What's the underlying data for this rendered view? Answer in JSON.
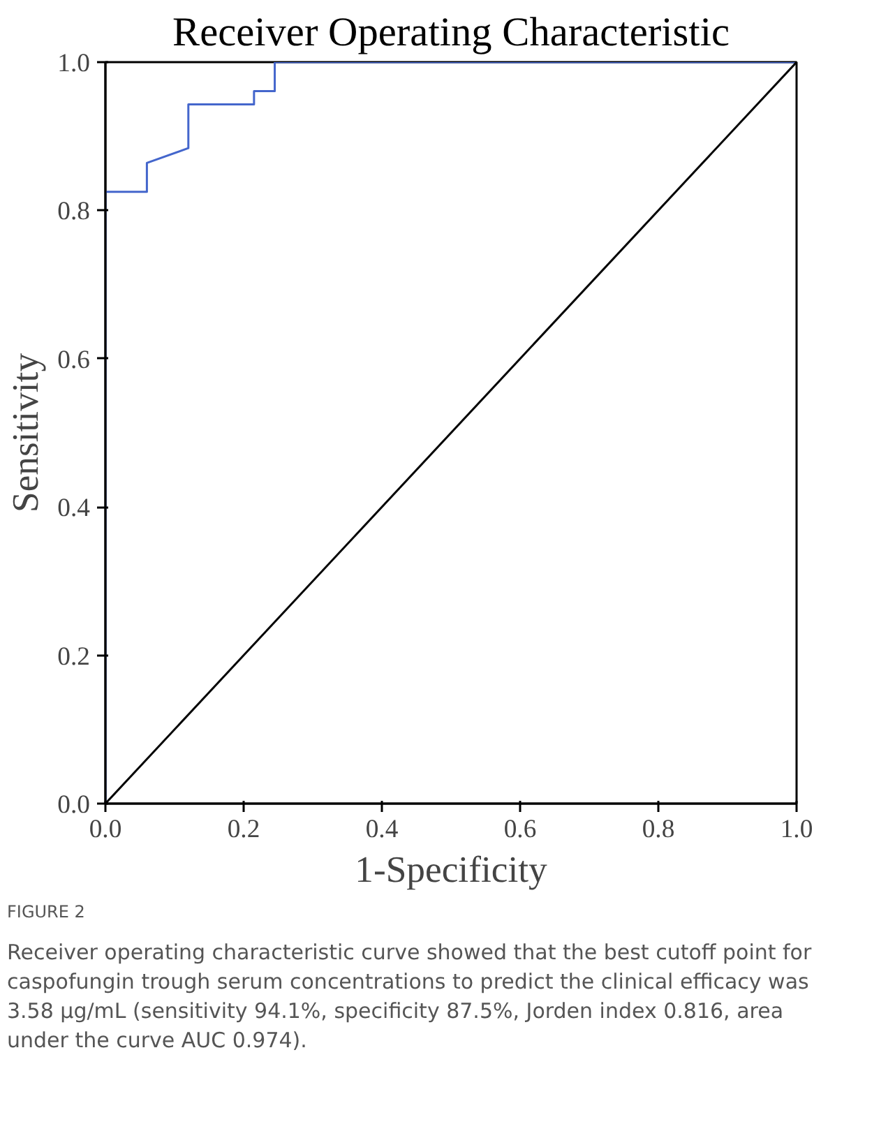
{
  "chart_data": {
    "type": "line",
    "title": "Receiver Operating Characteristic",
    "xlabel": "1-Specificity",
    "ylabel": "Sensitivity",
    "series": [
      {
        "color": "#4466cc",
        "x": [
          0,
          0,
          0.06,
          0.06,
          0.12,
          0.12,
          0.215,
          0.215,
          0.245,
          0.245,
          1
        ],
        "values": [
          0,
          0.825,
          0.825,
          0.864,
          0.884,
          0.943,
          0.943,
          0.961,
          0.961,
          1,
          1
        ]
      },
      {
        "color": "#000000",
        "x": [
          0,
          1
        ],
        "values": [
          0,
          1
        ]
      }
    ],
    "xlim": [
      0,
      1
    ],
    "ylim": [
      0,
      1
    ],
    "xticks": [
      {
        "value": 0,
        "label": "0.0"
      },
      0.2,
      0.4,
      0.6,
      0.8,
      {
        "value": 1,
        "label": "1.0"
      }
    ],
    "yticks": [
      {
        "value": 0,
        "label": "0.0"
      },
      0.2,
      0.4,
      0.6,
      0.8,
      {
        "value": 1,
        "label": "1.0"
      }
    ],
    "grid": false,
    "annotations": [
      "FIGURE 2",
      "Receiver operating characteristic curve showed that the best cutoff point for caspofungin trough serum concentrations to predict the clinical efficacy was 3.58 µg/mL (sensitivity 94.1%, specificity 87.5%, Jorden index 0.816, area under the curve AUC 0.974)."
    ]
  }
}
